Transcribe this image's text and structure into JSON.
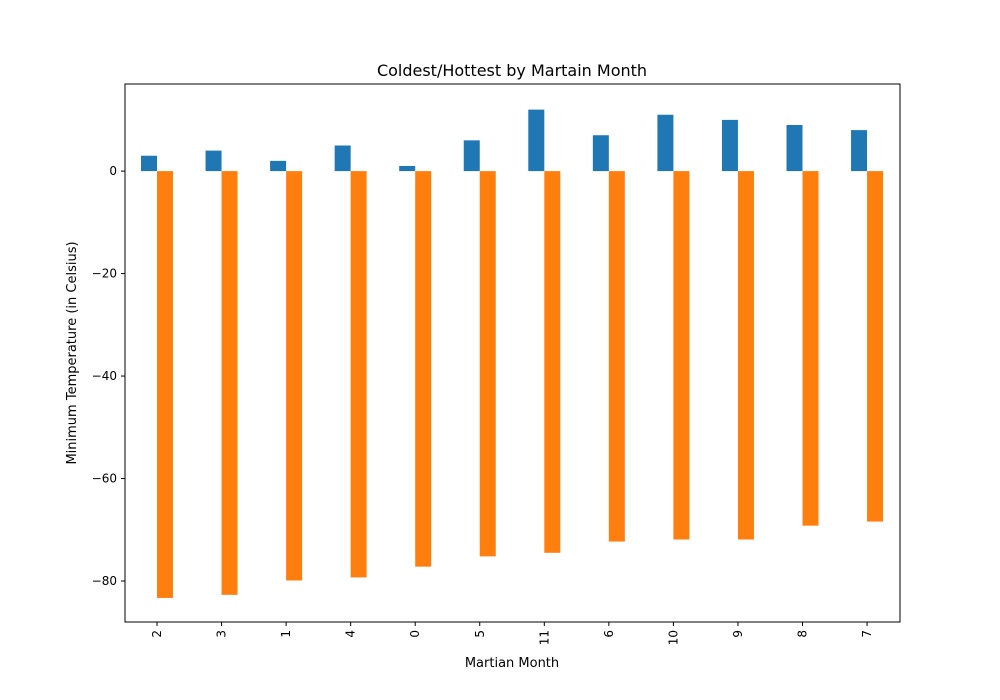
{
  "chart_data": {
    "type": "bar",
    "title": "Coldest/Hottest by Martain Month",
    "xlabel": "Martian Month",
    "ylabel": "Minimum Temperature (in Celsius)",
    "categories": [
      "2",
      "3",
      "1",
      "4",
      "0",
      "5",
      "11",
      "6",
      "10",
      "9",
      "8",
      "7"
    ],
    "series": [
      {
        "color": "#1f77b4",
        "values": [
          3,
          4,
          2,
          5,
          1,
          6,
          12,
          7,
          11,
          10,
          9,
          8
        ]
      },
      {
        "color": "#ff7f0e",
        "values": [
          -83.3,
          -82.7,
          -79.9,
          -79.3,
          -77.2,
          -75.2,
          -74.5,
          -72.3,
          -71.9,
          -71.9,
          -69.2,
          -68.4
        ]
      }
    ],
    "ylim": [
      -88,
      17
    ],
    "yticks": [
      0,
      -20,
      -40,
      -60,
      -80
    ],
    "ytick_labels": [
      "0",
      "−20",
      "−40",
      "−60",
      "−80"
    ],
    "xtick_rotation": "vertical",
    "grid": false,
    "legend": "none"
  }
}
